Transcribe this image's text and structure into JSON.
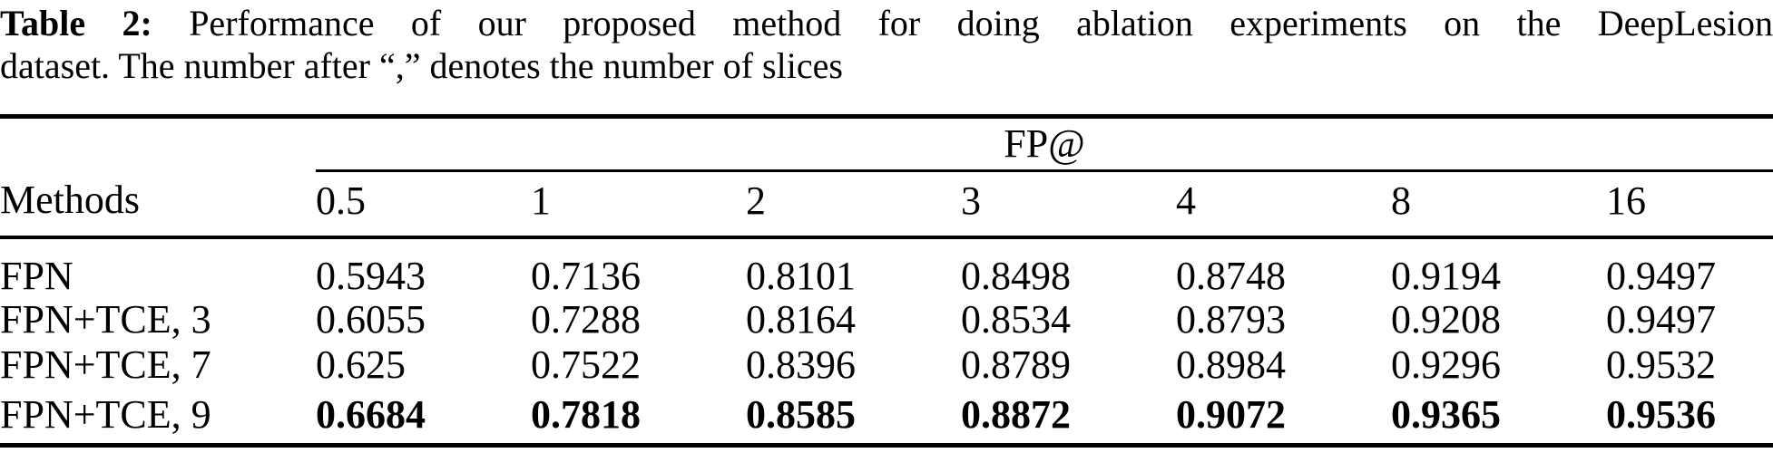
{
  "caption": {
    "label": "Table 2:",
    "line1": "Performance of our proposed method for doing ablation experiments on the DeepLesion",
    "line2": "dataset. The number after “,” denotes the number of slices"
  },
  "table": {
    "group_header": "FP@",
    "methods_header": "Methods",
    "fp_columns": [
      "0.5",
      "1",
      "2",
      "3",
      "4",
      "8",
      "16"
    ],
    "rows": [
      {
        "method": "FPN",
        "bold": false,
        "values": [
          "0.5943",
          "0.7136",
          "0.8101",
          "0.8498",
          "0.8748",
          "0.9194",
          "0.9497"
        ]
      },
      {
        "method": "FPN+TCE, 3",
        "bold": false,
        "values": [
          "0.6055",
          "0.7288",
          "0.8164",
          "0.8534",
          "0.8793",
          "0.9208",
          "0.9497"
        ]
      },
      {
        "method": "FPN+TCE, 7",
        "bold": false,
        "values": [
          "0.625",
          "0.7522",
          "0.8396",
          "0.8789",
          "0.8984",
          "0.9296",
          "0.9532"
        ]
      },
      {
        "method": "FPN+TCE, 9",
        "bold": true,
        "values": [
          "0.6684",
          "0.7818",
          "0.8585",
          "0.8872",
          "0.9072",
          "0.9365",
          "0.9536"
        ]
      }
    ]
  },
  "colors": {
    "text": "#000000",
    "background": "#ffffff",
    "rule": "#000000"
  }
}
